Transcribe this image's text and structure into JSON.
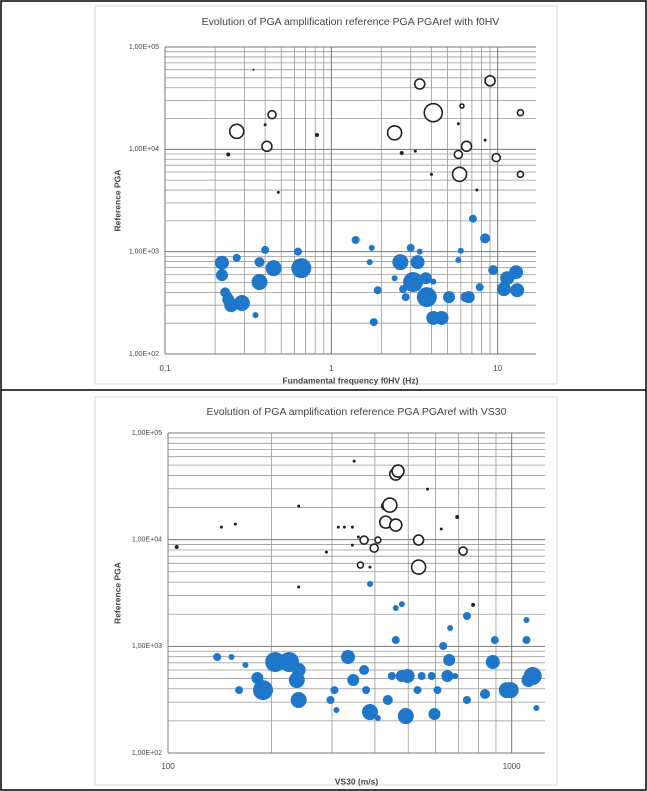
{
  "chart_data": [
    {
      "type": "scatter",
      "title": "Evolution of PGA amplification reference PGA PGAref with f0HV",
      "xlabel": "Fundamental frequency f0HV (Hz)",
      "ylabel": "Reference PGA",
      "xscale": "log",
      "yscale": "log",
      "grid": true,
      "minor_grid": true,
      "xlim": [
        0.1,
        17
      ],
      "ylim": [
        100,
        100000
      ],
      "xticks": [
        {
          "value": 0.1,
          "label": "0,1"
        },
        1,
        10
      ],
      "yticks": [
        {
          "value": 100,
          "label": "1,00E+02"
        },
        {
          "value": 1000,
          "label": "1,00E+03"
        },
        {
          "value": 10000,
          "label": "1,00E+04"
        },
        {
          "value": 100000,
          "label": "1,00E+05"
        }
      ],
      "series": [
        {
          "color": "#1f77c9",
          "filled": true,
          "x": [
            0.22,
            0.22,
            0.23,
            0.24,
            0.25,
            0.29,
            0.24,
            0.27,
            0.37,
            0.37,
            0.45,
            0.66,
            0.63,
            0.4,
            0.35,
            1.4,
            1.75,
            1.7,
            1.9,
            2.4,
            2.6,
            2.7,
            2.8,
            3.1,
            3.3,
            3.4,
            3.7,
            4.1,
            3.0,
            3.75,
            4.1,
            5.1,
            6.0,
            6.7,
            6.4,
            7.1,
            7.8,
            8.4,
            9.4,
            11.4,
            10.9,
            12.9,
            13.1,
            1.8,
            4.6,
            5.8
          ],
          "values": [
            780,
            590,
            400,
            340,
            300,
            315,
            370,
            870,
            505,
            790,
            690,
            690,
            1000,
            1040,
            240,
            1300,
            1090,
            790,
            420,
            550,
            790,
            430,
            360,
            505,
            790,
            1000,
            550,
            510,
            1090,
            360,
            225,
            360,
            1020,
            360,
            360,
            2100,
            450,
            1350,
            660,
            550,
            430,
            630,
            420,
            205,
            225,
            830
          ],
          "sizes": [
            7,
            6,
            5,
            6,
            7,
            8,
            4,
            4,
            8,
            5,
            8,
            10,
            4,
            4,
            3,
            4,
            3,
            3,
            4,
            3,
            8,
            4,
            4,
            10,
            7,
            3,
            6,
            3,
            4,
            10,
            7,
            6,
            3,
            6,
            5,
            4,
            4,
            5,
            5,
            7,
            7,
            7,
            7,
            4,
            7,
            3
          ]
        },
        {
          "color": "#222222",
          "filled": false,
          "x": [
            0.27,
            0.41,
            0.44,
            3.4,
            2.4,
            4.1,
            9.0,
            6.1,
            5.8,
            6.5,
            5.9,
            9.8,
            13.7,
            13.7
          ],
          "values": [
            15000,
            10700,
            21800,
            43500,
            14500,
            22800,
            46700,
            26500,
            8900,
            10700,
            5700,
            8300,
            22800,
            5700
          ],
          "sizes": [
            7,
            5,
            4,
            5,
            7,
            9,
            5,
            2,
            4,
            5,
            7,
            4,
            3,
            3
          ]
        },
        {
          "color": "#222222",
          "filled": true,
          "x": [
            0.82,
            0.24,
            0.34,
            0.48,
            0.4,
            2.65,
            3.2,
            4.0,
            7.5,
            8.4,
            5.8
          ],
          "values": [
            13800,
            8900,
            60000,
            3800,
            17400,
            9200,
            9600,
            5700,
            4000,
            12300,
            17800
          ],
          "sizes": [
            2,
            2,
            1,
            1.5,
            1.5,
            2,
            1.5,
            1.5,
            1.5,
            1.5,
            1.5
          ]
        }
      ]
    },
    {
      "type": "scatter",
      "title": "Evolution of PGA amplification reference PGA PGAref with VS30",
      "xlabel": "VS30 (m/s)",
      "ylabel": "Reference PGA",
      "xscale": "log",
      "yscale": "log",
      "grid": true,
      "minor_grid": true,
      "xlim": [
        100,
        1250
      ],
      "ylim": [
        100,
        100000
      ],
      "xticks": [
        100,
        1000
      ],
      "yticks": [
        {
          "value": 100,
          "label": "1,00E+02"
        },
        {
          "value": 1000,
          "label": "1,00E+03"
        },
        {
          "value": 10000,
          "label": "1,00E+04"
        },
        {
          "value": 100000,
          "label": "1,00E+05"
        }
      ],
      "series": [
        {
          "color": "#1f77c9",
          "filled": true,
          "x": [
            139,
            168,
            153,
            189,
            205,
            225,
            240,
            237,
            182,
            240,
            161,
            297,
            305,
            334,
            346,
            372,
            377,
            387,
            408,
            436,
            448,
            460,
            479,
            498,
            532,
            547,
            585,
            608,
            632,
            650,
            658,
            492,
            596,
            662,
            685,
            741,
            836,
            881,
            893,
            968,
            993,
            1104,
            1119,
            1151,
            1180,
            309,
            387,
            460,
            479,
            741,
            1104
          ],
          "values": [
            794,
            668,
            794,
            389,
            713,
            713,
            314,
            483,
            505,
            600,
            389,
            314,
            389,
            794,
            483,
            600,
            389,
            242,
            213,
            314,
            527,
            1146,
            527,
            527,
            389,
            527,
            527,
            389,
            1007,
            527,
            745,
            222,
            232,
            1485,
            527,
            314,
            357,
            713,
            1146,
            389,
            389,
            1146,
            483,
            527,
            264,
            253,
            3840,
            2285,
            2490,
            1923,
            1766
          ],
          "sizes": [
            4,
            3,
            3,
            10,
            10,
            10,
            8,
            8,
            6,
            7,
            4,
            4,
            4,
            7,
            6,
            5,
            4,
            8,
            3,
            5,
            4,
            4,
            6,
            7,
            4,
            4,
            4,
            4,
            4,
            6,
            6,
            8,
            6,
            3,
            3,
            4,
            5,
            7,
            4,
            8,
            8,
            4,
            7,
            9,
            3,
            3,
            3,
            3,
            3,
            4,
            3
          ]
        },
        {
          "color": "#222222",
          "filled": false,
          "x": [
            430,
            460,
            467,
            442,
            430,
            460,
            536,
            536,
            372,
            398,
            363,
            722,
            408
          ],
          "values": [
            20700,
            41200,
            44000,
            21100,
            14600,
            13700,
            9910,
            5530,
            9910,
            8340,
            5780,
            7820,
            9910
          ],
          "sizes": [
            4,
            6,
            6,
            7,
            6,
            6,
            5,
            7,
            4,
            4,
            3,
            4,
            3
          ]
        },
        {
          "color": "#222222",
          "filled": true,
          "x": [
            106,
            143,
            157,
            240,
            313,
            326,
            344,
            344,
            358,
            387,
            240,
            289,
            694,
            624,
            569,
            348,
            772
          ],
          "values": [
            8530,
            13100,
            14000,
            3600,
            13100,
            13100,
            13100,
            8900,
            10600,
            5530,
            20700,
            7650,
            16300,
            12600,
            29800,
            54500,
            2450
          ],
          "sizes": [
            2,
            1.5,
            1.5,
            1.5,
            1.5,
            1.5,
            1.5,
            1.5,
            1.5,
            1.5,
            1.5,
            1.5,
            2,
            1.5,
            1.5,
            1.5,
            2
          ]
        }
      ]
    }
  ]
}
